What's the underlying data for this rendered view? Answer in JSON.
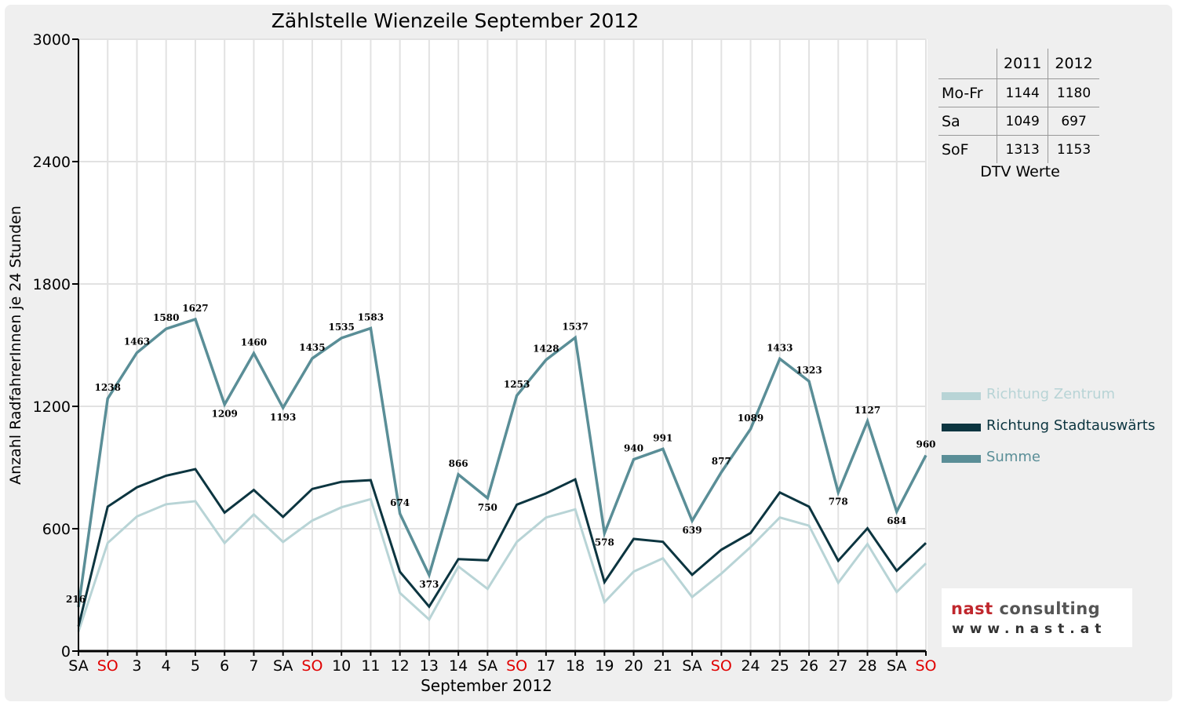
{
  "chart_data": {
    "type": "line",
    "title": "Zählstelle Wienzeile September 2012",
    "xlabel": "September 2012",
    "ylabel": "Anzahl RadfahrerInnen je 24 Stunden",
    "ylim": [
      0,
      3000
    ],
    "yticks": [
      "0",
      "600",
      "1200",
      "1800",
      "2400",
      "3000"
    ],
    "grid": true,
    "legend_position": "right",
    "categories": [
      "SA",
      "SO",
      "3",
      "4",
      "5",
      "6",
      "7",
      "SA",
      "SO",
      "10",
      "11",
      "12",
      "13",
      "14",
      "SA",
      "SO",
      "17",
      "18",
      "19",
      "20",
      "21",
      "SA",
      "SO",
      "24",
      "25",
      "26",
      "27",
      "28",
      "SA",
      "SO"
    ],
    "category_colors": [
      "#000000",
      "#e00000",
      "#000000",
      "#000000",
      "#000000",
      "#000000",
      "#000000",
      "#000000",
      "#e00000",
      "#000000",
      "#000000",
      "#000000",
      "#000000",
      "#000000",
      "#000000",
      "#e00000",
      "#000000",
      "#000000",
      "#000000",
      "#000000",
      "#000000",
      "#000000",
      "#e00000",
      "#000000",
      "#000000",
      "#000000",
      "#000000",
      "#000000",
      "#000000",
      "#e00000"
    ],
    "series": [
      {
        "name": "Richtung Zentrum",
        "color": "#b8d4d6",
        "values": [
          95,
          530,
          660,
          720,
          735,
          530,
          670,
          535,
          640,
          705,
          745,
          285,
          155,
          415,
          305,
          535,
          655,
          695,
          240,
          390,
          455,
          265,
          380,
          510,
          655,
          615,
          335,
          525,
          290,
          430
        ]
      },
      {
        "name": "Richtung Stadtauswärts",
        "color": "#0c3540",
        "values": [
          121,
          708,
          803,
          860,
          892,
          679,
          790,
          658,
          795,
          830,
          838,
          389,
          218,
          451,
          445,
          718,
          773,
          842,
          338,
          550,
          536,
          374,
          497,
          579,
          778,
          708,
          443,
          602,
          394,
          530
        ]
      },
      {
        "name": "Summe",
        "color": "#5a8e97",
        "values": [
          216,
          1238,
          1463,
          1580,
          1627,
          1209,
          1460,
          1193,
          1435,
          1535,
          1583,
          674,
          373,
          866,
          750,
          1253,
          1428,
          1537,
          578,
          940,
          991,
          639,
          877,
          1089,
          1433,
          1323,
          778,
          1127,
          684,
          960
        ],
        "labels": [
          "216",
          "1238",
          "1463",
          "1580",
          "1627",
          "1209",
          "1460",
          "1193",
          "1435",
          "1535",
          "1583",
          "674",
          "373",
          "866",
          "750",
          "1253",
          "1428",
          "1537",
          "578",
          "940",
          "991",
          "639",
          "877",
          "1089",
          "1433",
          "1323",
          "778",
          "1127",
          "684",
          "960"
        ]
      }
    ]
  },
  "dtv_table": {
    "caption": "DTV Werte",
    "col_2011": "2011",
    "col_2012": "2012",
    "rows": [
      {
        "label": "Mo-Fr",
        "v2011": "1144",
        "v2012": "1180"
      },
      {
        "label": "Sa",
        "v2011": "1049",
        "v2012": "697"
      },
      {
        "label": "SoF",
        "v2011": "1313",
        "v2012": "1153"
      }
    ]
  },
  "logo": {
    "part1": "nast",
    "part2": " consulting",
    "url": "www.nast.at"
  }
}
